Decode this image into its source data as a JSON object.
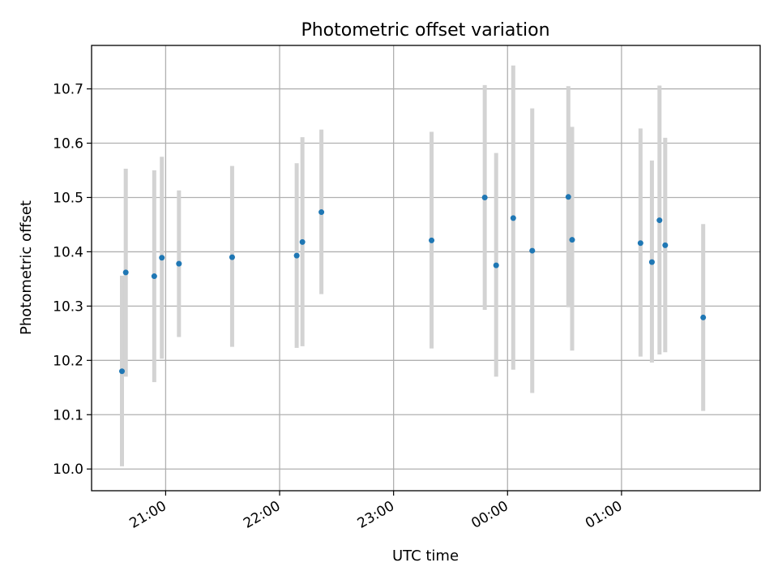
{
  "chart_data": {
    "type": "scatter",
    "title": "Photometric offset variation",
    "xlabel": "UTC time",
    "ylabel": "Photometric offset",
    "grid": true,
    "x_axis": {
      "kind": "time",
      "ticks": [
        "21:00",
        "22:00",
        "23:00",
        "00:00",
        "01:00"
      ],
      "range": [
        "20:21",
        "02:13"
      ]
    },
    "y_axis": {
      "ticks": [
        "10.0",
        "10.1",
        "10.2",
        "10.3",
        "10.4",
        "10.5",
        "10.6",
        "10.7"
      ],
      "range": [
        9.96,
        10.78
      ]
    },
    "series": [
      {
        "color": "#1f77b4",
        "errorbar_color": "#d3d3d3",
        "points": [
          {
            "x": "20:37",
            "y": 10.18,
            "ylow": 10.005,
            "yhigh": 10.356
          },
          {
            "x": "20:39",
            "y": 10.362,
            "ylow": 10.17,
            "yhigh": 10.553
          },
          {
            "x": "20:54",
            "y": 10.355,
            "ylow": 10.16,
            "yhigh": 10.55
          },
          {
            "x": "20:58",
            "y": 10.389,
            "ylow": 10.203,
            "yhigh": 10.575
          },
          {
            "x": "21:07",
            "y": 10.378,
            "ylow": 10.243,
            "yhigh": 10.513
          },
          {
            "x": "21:35",
            "y": 10.39,
            "ylow": 10.225,
            "yhigh": 10.558
          },
          {
            "x": "22:09",
            "y": 10.393,
            "ylow": 10.223,
            "yhigh": 10.563
          },
          {
            "x": "22:12",
            "y": 10.418,
            "ylow": 10.226,
            "yhigh": 10.611
          },
          {
            "x": "22:22",
            "y": 10.473,
            "ylow": 10.322,
            "yhigh": 10.625
          },
          {
            "x": "23:20",
            "y": 10.421,
            "ylow": 10.222,
            "yhigh": 10.621
          },
          {
            "x": "23:48",
            "y": 10.5,
            "ylow": 10.293,
            "yhigh": 10.707
          },
          {
            "x": "23:54",
            "y": 10.375,
            "ylow": 10.17,
            "yhigh": 10.582
          },
          {
            "x": "00:03",
            "y": 10.462,
            "ylow": 10.183,
            "yhigh": 10.743
          },
          {
            "x": "00:13",
            "y": 10.402,
            "ylow": 10.14,
            "yhigh": 10.664
          },
          {
            "x": "00:32",
            "y": 10.501,
            "ylow": 10.298,
            "yhigh": 10.705
          },
          {
            "x": "00:34",
            "y": 10.422,
            "ylow": 10.218,
            "yhigh": 10.63
          },
          {
            "x": "01:10",
            "y": 10.416,
            "ylow": 10.207,
            "yhigh": 10.627
          },
          {
            "x": "01:16",
            "y": 10.381,
            "ylow": 10.196,
            "yhigh": 10.568
          },
          {
            "x": "01:20",
            "y": 10.458,
            "ylow": 10.211,
            "yhigh": 10.706
          },
          {
            "x": "01:23",
            "y": 10.412,
            "ylow": 10.215,
            "yhigh": 10.61
          },
          {
            "x": "01:43",
            "y": 10.279,
            "ylow": 10.107,
            "yhigh": 10.451
          }
        ]
      }
    ]
  }
}
